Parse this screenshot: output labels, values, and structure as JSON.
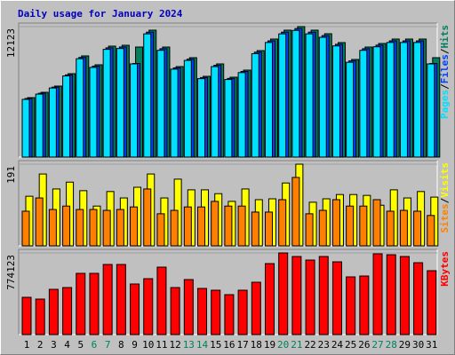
{
  "chart_data": [
    {
      "type": "bar",
      "title": "Daily usage for January 2024",
      "separator": "/",
      "ylim": [
        0,
        12123
      ],
      "yticks": [
        12123
      ],
      "series": [
        {
          "name": "Hits",
          "color": "#00805c",
          "values": [
            5525,
            6020,
            6598,
            7752,
            9402,
            8577,
            10309,
            10391,
            10226,
            11793,
            10226,
            8412,
            9237,
            7505,
            8659,
            7422,
            8082,
            9896,
            10969,
            11793,
            12123,
            11793,
            11463,
            10639,
            9072,
            10226,
            10556,
            10969,
            10969,
            10969,
            9237
          ]
        },
        {
          "name": "Files",
          "color": "#0040ff",
          "values": [
            5440,
            5930,
            6500,
            7640,
            9260,
            8450,
            10150,
            10230,
            8700,
            11610,
            10070,
            8290,
            9100,
            7390,
            8530,
            7310,
            7960,
            9750,
            10800,
            11610,
            11940,
            11610,
            11290,
            10480,
            8940,
            10070,
            10400,
            10800,
            10800,
            10800,
            8700
          ]
        },
        {
          "name": "Pages",
          "color": "#00e0ff",
          "values": [
            5360,
            5850,
            6420,
            7540,
            9140,
            8330,
            10010,
            10090,
            8659,
            11450,
            9920,
            8170,
            8980,
            7290,
            8410,
            7210,
            7850,
            9610,
            10650,
            11450,
            11770,
            11450,
            11130,
            10330,
            8810,
            9920,
            10250,
            10650,
            10650,
            10650,
            8659
          ]
        }
      ]
    },
    {
      "type": "bar",
      "separator": "/",
      "ylim": [
        0,
        191
      ],
      "yticks": [
        191
      ],
      "series": [
        {
          "name": "Visits",
          "color": "#ffff00",
          "values": [
            116,
            168,
            133,
            149,
            129,
            93,
            127,
            112,
            137,
            168,
            112,
            156,
            131,
            131,
            122,
            104,
            133,
            108,
            110,
            147,
            191,
            102,
            110,
            120,
            120,
            118,
            95,
            131,
            112,
            127,
            114
          ]
        },
        {
          "name": "Sites",
          "color": "#ff8000",
          "values": [
            81,
            112,
            85,
            93,
            85,
            85,
            83,
            85,
            91,
            133,
            75,
            83,
            91,
            91,
            104,
            93,
            93,
            79,
            79,
            108,
            160,
            75,
            83,
            108,
            93,
            93,
            108,
            81,
            83,
            81,
            71
          ]
        }
      ]
    },
    {
      "type": "bar",
      "ylim": [
        0,
        774123
      ],
      "yticks": [
        774123
      ],
      "categories": [
        "1",
        "2",
        "3",
        "4",
        "5",
        "6",
        "7",
        "8",
        "9",
        "10",
        "11",
        "12",
        "13",
        "14",
        "15",
        "16",
        "17",
        "18",
        "19",
        "20",
        "21",
        "22",
        "23",
        "24",
        "25",
        "26",
        "27",
        "28",
        "29",
        "30",
        "31"
      ],
      "weekend": [
        false,
        false,
        false,
        false,
        false,
        true,
        true,
        false,
        false,
        false,
        false,
        false,
        true,
        true,
        false,
        false,
        false,
        false,
        false,
        true,
        true,
        false,
        false,
        false,
        false,
        false,
        true,
        true,
        false,
        false,
        false
      ],
      "weekend_color": "#00805c",
      "series": [
        {
          "name": "KBytes",
          "color": "#ff0000",
          "values": [
            353388,
            336560,
            429114,
            445942,
            580566,
            580566,
            664706,
            664706,
            479598,
            530082,
            639464,
            445942,
            521668,
            437528,
            420700,
            378630,
            420700,
            496426,
            673120,
            774123,
            740432,
            706776,
            740432,
            689948,
            546910,
            555324,
            765694,
            757280,
            740432,
            681534,
            605808
          ]
        }
      ]
    }
  ]
}
